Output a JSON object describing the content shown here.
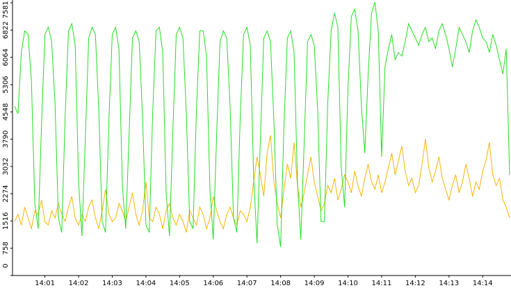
{
  "chart_data": {
    "type": "line",
    "categories": [
      null,
      null,
      null,
      null,
      null,
      null,
      null,
      null,
      null,
      "14:01",
      null,
      null,
      null,
      null,
      null,
      null,
      null,
      null,
      null,
      "14:02",
      null,
      null,
      null,
      null,
      null,
      null,
      null,
      null,
      null,
      "14:03",
      null,
      null,
      null,
      null,
      null,
      null,
      null,
      null,
      null,
      "14:04",
      null,
      null,
      null,
      null,
      null,
      null,
      null,
      null,
      null,
      "14:05",
      null,
      null,
      null,
      null,
      null,
      null,
      null,
      null,
      null,
      "14:06",
      null,
      null,
      null,
      null,
      null,
      null,
      null,
      null,
      null,
      "14:07",
      null,
      null,
      null,
      null,
      null,
      null,
      null,
      null,
      null,
      "14:08",
      null,
      null,
      null,
      null,
      null,
      null,
      null,
      null,
      null,
      "14:09",
      null,
      null,
      null,
      null,
      null,
      null,
      null,
      null,
      null,
      "14:10",
      null,
      null,
      null,
      null,
      null,
      null,
      null,
      null,
      null,
      "14:11",
      null,
      null,
      null,
      null,
      null,
      null,
      null,
      null,
      null,
      "14:12",
      null,
      null,
      null,
      null,
      null,
      null,
      null,
      null,
      null,
      "14:13",
      null,
      null,
      null,
      null,
      null,
      null,
      null,
      null,
      null,
      "14:14",
      null,
      null,
      null,
      null,
      null,
      null,
      null,
      null
    ],
    "series": [
      {
        "color": "#22dd22",
        "values": [
          4700,
          4500,
          6200,
          6800,
          6700,
          5400,
          2000,
          1300,
          4200,
          6700,
          6900,
          6500,
          4800,
          1600,
          1200,
          4400,
          6800,
          7000,
          6400,
          2600,
          1100,
          3800,
          6600,
          6900,
          6700,
          4600,
          1500,
          1200,
          4300,
          6700,
          6900,
          6300,
          2500,
          1300,
          3900,
          6600,
          6800,
          6500,
          4400,
          1400,
          1200,
          4500,
          6800,
          6900,
          6200,
          2300,
          1100,
          4000,
          6700,
          6900,
          6600,
          4500,
          1500,
          1300,
          4600,
          6800,
          6800,
          6100,
          2400,
          1000,
          3900,
          6500,
          6800,
          6600,
          4700,
          1600,
          1200,
          4400,
          6700,
          6900,
          6400,
          2700,
          900,
          3800,
          6600,
          6800,
          6500,
          4300,
          1400,
          800,
          4200,
          6600,
          6800,
          6200,
          2600,
          1000,
          3700,
          6500,
          6700,
          6400,
          4600,
          1500,
          1500,
          4800,
          6800,
          7300,
          6900,
          3000,
          1900,
          5200,
          7200,
          7400,
          6800,
          4700,
          3400,
          5600,
          7300,
          7600,
          6800,
          3300,
          5800,
          6300,
          6700,
          6000,
          6200,
          6100,
          6500,
          7000,
          6800,
          6600,
          6400,
          6700,
          6900,
          6500,
          6600,
          6300,
          6800,
          7000,
          6700,
          6300,
          5800,
          6300,
          6900,
          6700,
          6500,
          6200,
          6800,
          7100,
          6900,
          6600,
          6500,
          6200,
          6700,
          6400,
          6000,
          5600,
          6300,
          2800
        ]
      },
      {
        "color": "#f5b400",
        "values": [
          1500,
          1700,
          1400,
          1900,
          1600,
          1300,
          1800,
          1700,
          2100,
          1500,
          1400,
          1800,
          1600,
          2000,
          1700,
          1500,
          1900,
          2200,
          1600,
          1400,
          1700,
          1500,
          1900,
          2100,
          1600,
          1300,
          1800,
          2400,
          1700,
          1500,
          1600,
          2000,
          1800,
          1500,
          1900,
          2300,
          1700,
          1400,
          1800,
          2600,
          1600,
          1500,
          1900,
          1700,
          1300,
          1800,
          2000,
          1600,
          1400,
          1700,
          1500,
          1200,
          1800,
          1600,
          1400,
          1900,
          1700,
          1300,
          1600,
          2200,
          1800,
          1500,
          1300,
          1700,
          1900,
          1600,
          1400,
          1800,
          1700,
          1500,
          1900,
          2600,
          3300,
          2800,
          2200,
          3400,
          3900,
          2600,
          2000,
          1600,
          2400,
          3100,
          2700,
          3700,
          2500,
          1900,
          2300,
          2800,
          3300,
          2600,
          2200,
          1800,
          2000,
          2500,
          2300,
          2700,
          2100,
          2400,
          2800,
          2600,
          2300,
          2900,
          2500,
          2200,
          2700,
          3100,
          2600,
          2400,
          2800,
          2300,
          2600,
          3000,
          3400,
          2800,
          3200,
          3600,
          2900,
          2500,
          2700,
          2300,
          2500,
          3100,
          3800,
          3000,
          2600,
          2900,
          3300,
          2700,
          2400,
          2100,
          2500,
          2800,
          2300,
          2600,
          3100,
          2700,
          2200,
          2600,
          2400,
          2900,
          3200,
          3700,
          2800,
          2500,
          2700,
          2100,
          1900,
          1600
        ]
      }
    ],
    "ylim": [
      0,
      7581
    ],
    "yticks": [
      0,
      758,
      1516,
      2274,
      3032,
      3790,
      4548,
      5306,
      6064,
      6822,
      7581
    ]
  }
}
